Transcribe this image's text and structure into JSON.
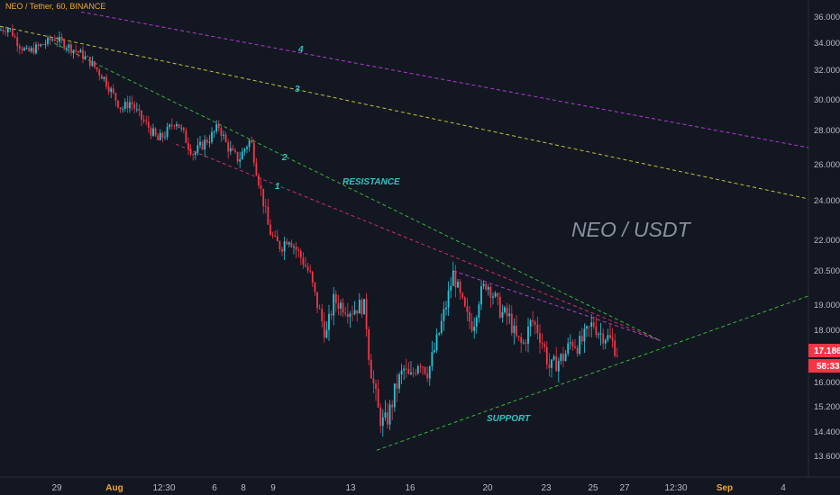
{
  "chart_data": {
    "type": "candlestick",
    "title": "NEO / Tether, 60, BINANCE",
    "watermark": "NEO / USDT",
    "x_ticks": [
      "29",
      "Aug",
      "12:30",
      "6",
      "8",
      "9",
      "13",
      "16",
      "20",
      "23",
      "25",
      "27",
      "12:30",
      "Sep",
      "4"
    ],
    "y_ticks": [
      "36.000",
      "34.000",
      "32.000",
      "30.000",
      "28.000",
      "26.000",
      "24.000",
      "22.000",
      "20.500",
      "19.000",
      "18.000",
      "17.186",
      "16.000",
      "15.200",
      "14.400",
      "13.600"
    ],
    "last_price": "17.186",
    "countdown": "58:33",
    "annotations": {
      "resistance": "RESISTANCE",
      "support": "SUPPORT",
      "line_labels": [
        "1",
        "2",
        "3",
        "4"
      ]
    },
    "price_path": [
      [
        0,
        35.0
      ],
      [
        10,
        35.2
      ],
      [
        20,
        34.0
      ],
      [
        30,
        33.3
      ],
      [
        45,
        33.8
      ],
      [
        60,
        34.4
      ],
      [
        75,
        33.8
      ],
      [
        90,
        33.2
      ],
      [
        100,
        32.6
      ],
      [
        115,
        31.5
      ],
      [
        125,
        30.4
      ],
      [
        135,
        29.4
      ],
      [
        145,
        29.9
      ],
      [
        155,
        28.9
      ],
      [
        165,
        28.2
      ],
      [
        175,
        27.4
      ],
      [
        185,
        27.9
      ],
      [
        195,
        28.7
      ],
      [
        205,
        27.6
      ],
      [
        215,
        26.6
      ],
      [
        225,
        27.2
      ],
      [
        235,
        27.7
      ],
      [
        243,
        28.3
      ],
      [
        250,
        27.3
      ],
      [
        258,
        26.6
      ],
      [
        265,
        26.3
      ],
      [
        272,
        27.0
      ],
      [
        278,
        27.5
      ],
      [
        285,
        25.6
      ],
      [
        292,
        24.0
      ],
      [
        298,
        22.6
      ],
      [
        305,
        21.9
      ],
      [
        312,
        21.7
      ],
      [
        320,
        22.2
      ],
      [
        328,
        21.6
      ],
      [
        336,
        21.0
      ],
      [
        344,
        20.3
      ],
      [
        350,
        19.3
      ],
      [
        356,
        18.5
      ],
      [
        362,
        17.8
      ],
      [
        370,
        19.2
      ],
      [
        380,
        19.0
      ],
      [
        390,
        18.8
      ],
      [
        400,
        19.0
      ],
      [
        405,
        18.9
      ],
      [
        410,
        16.8
      ],
      [
        415,
        15.8
      ],
      [
        420,
        15.0
      ],
      [
        426,
        14.6
      ],
      [
        432,
        15.0
      ],
      [
        440,
        15.9
      ],
      [
        448,
        16.5
      ],
      [
        455,
        16.1
      ],
      [
        465,
        16.9
      ],
      [
        475,
        16.4
      ],
      [
        485,
        17.6
      ],
      [
        495,
        19.0
      ],
      [
        503,
        20.4
      ],
      [
        510,
        19.4
      ],
      [
        518,
        18.5
      ],
      [
        525,
        18.2
      ],
      [
        532,
        19.4
      ],
      [
        540,
        20.0
      ],
      [
        548,
        19.4
      ],
      [
        556,
        18.7
      ],
      [
        565,
        18.5
      ],
      [
        572,
        17.7
      ],
      [
        580,
        17.4
      ],
      [
        590,
        18.4
      ],
      [
        597,
        18.0
      ],
      [
        604,
        17.3
      ],
      [
        610,
        16.5
      ],
      [
        618,
        16.8
      ],
      [
        626,
        17.0
      ],
      [
        634,
        17.6
      ],
      [
        642,
        17.4
      ],
      [
        650,
        17.8
      ],
      [
        658,
        18.3
      ],
      [
        665,
        17.9
      ],
      [
        672,
        17.8
      ],
      [
        680,
        17.5
      ],
      [
        686,
        17.1
      ]
    ],
    "trendlines": [
      {
        "name": "4",
        "color": "#c040e0",
        "from": [
          90,
          36.4
        ],
        "to": [
          897,
          27.0
        ]
      },
      {
        "name": "3",
        "color": "#d4d43a",
        "from": [
          0,
          35.3
        ],
        "to": [
          897,
          24.1
        ]
      },
      {
        "name": "2",
        "color": "#3cc43c",
        "from": [
          60,
          34.0
        ],
        "to": [
          733,
          17.6
        ]
      },
      {
        "name": "1",
        "color": "#e0306a",
        "from": [
          195,
          27.2
        ],
        "to": [
          733,
          17.6
        ]
      },
      {
        "name": "upper",
        "color": "#c040e0",
        "from": [
          503,
          20.5
        ],
        "to": [
          733,
          17.6
        ]
      },
      {
        "name": "support",
        "color": "#3cc43c",
        "from": [
          418,
          13.8
        ],
        "to": [
          897,
          19.4
        ]
      }
    ],
    "ylim": [
      13.0,
      36.8
    ],
    "grid": false
  }
}
